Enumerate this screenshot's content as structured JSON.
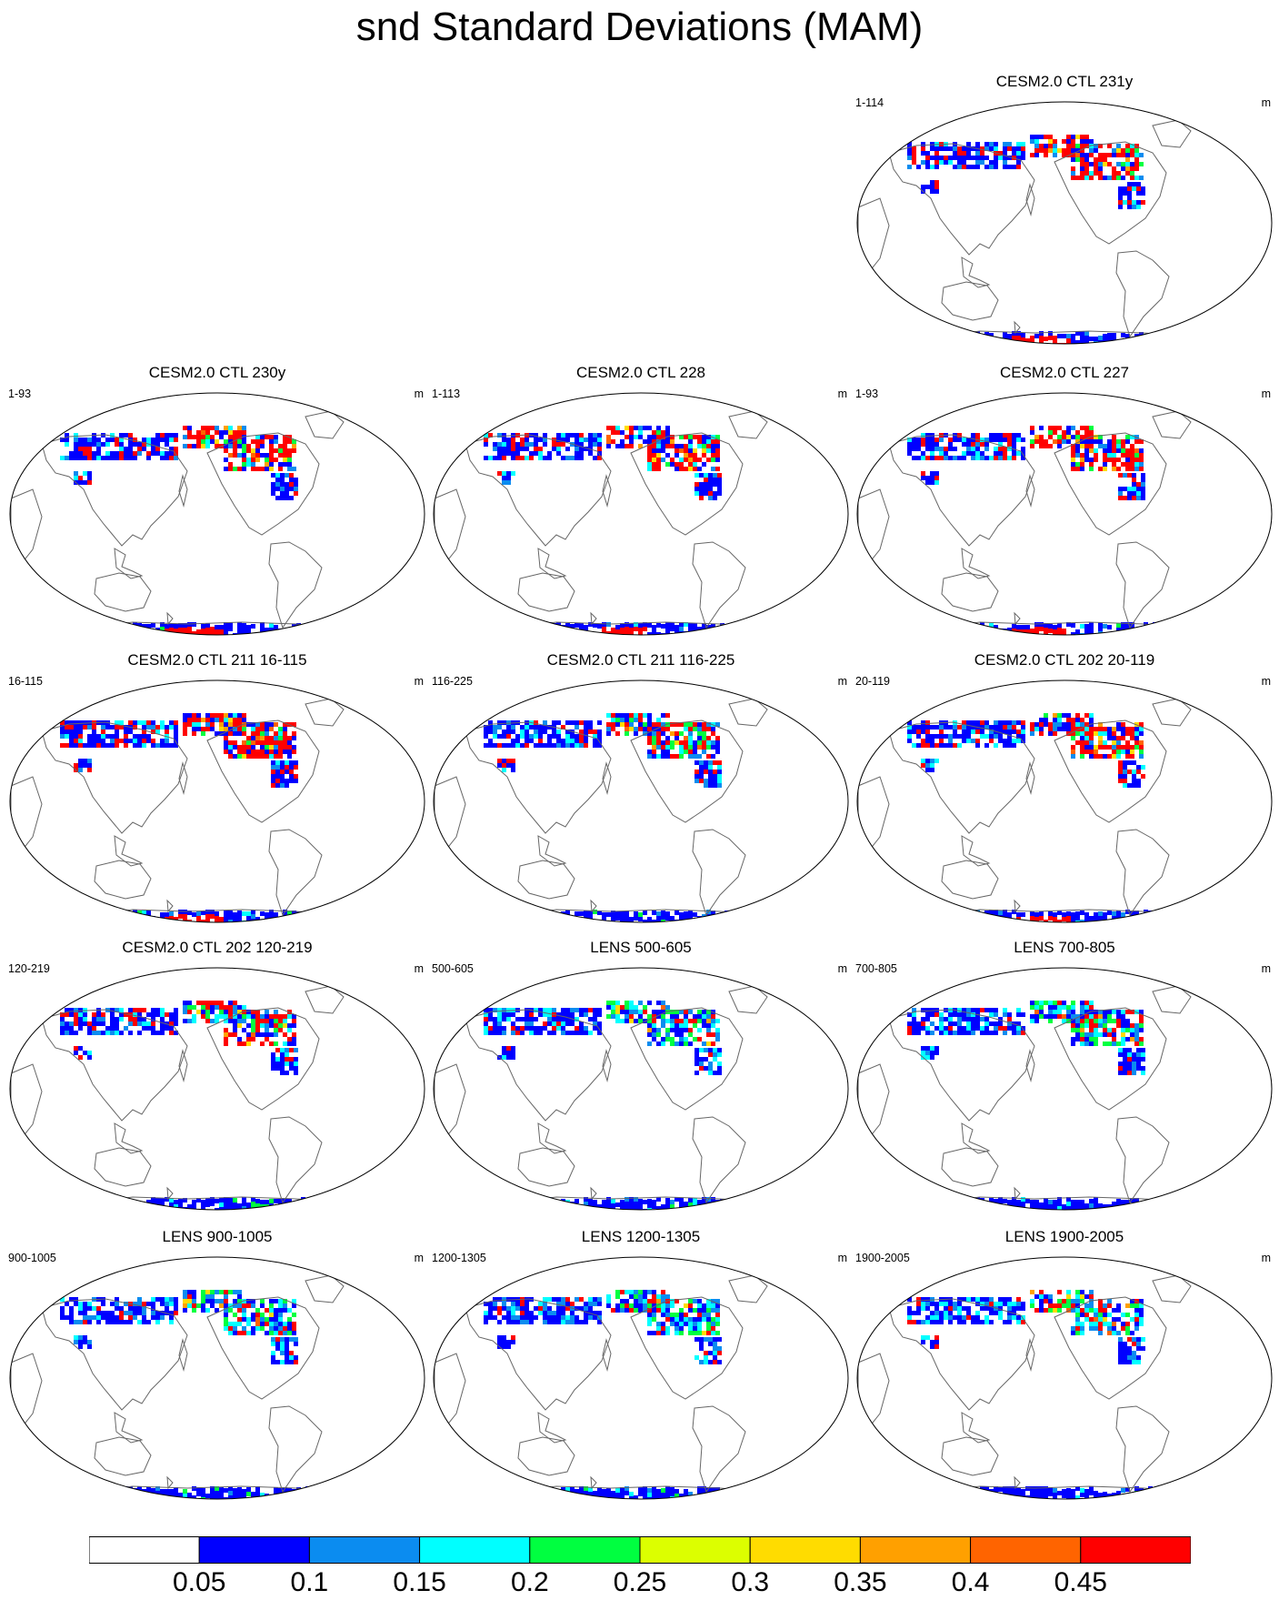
{
  "title": "snd Standard Deviations (MAM)",
  "panels": [
    {
      "title": "CESM2.0 CTL 231y",
      "range": "1-114",
      "units": "m",
      "row": 0,
      "col": 2,
      "intensity": 1.0,
      "antarctic_red": true
    },
    {
      "title": "CESM2.0 CTL 230y",
      "range": "1-93",
      "units": "m",
      "row": 1,
      "col": 0,
      "intensity": 1.0,
      "antarctic_red": true
    },
    {
      "title": "CESM2.0 CTL 228",
      "range": "1-113",
      "units": "m",
      "row": 1,
      "col": 1,
      "intensity": 1.0,
      "antarctic_red": true
    },
    {
      "title": "CESM2.0 CTL 227",
      "range": "1-93",
      "units": "m",
      "row": 1,
      "col": 2,
      "intensity": 1.0,
      "antarctic_red": true
    },
    {
      "title": "CESM2.0 CTL 211 16-115",
      "range": "16-115",
      "units": "m",
      "row": 2,
      "col": 0,
      "intensity": 1.0,
      "antarctic_red": true
    },
    {
      "title": "CESM2.0 CTL 211 116-225",
      "range": "116-225",
      "units": "m",
      "row": 2,
      "col": 1,
      "intensity": 0.7,
      "antarctic_red": false
    },
    {
      "title": "CESM2.0 CTL 202 20-119",
      "range": "20-119",
      "units": "m",
      "row": 2,
      "col": 2,
      "intensity": 1.0,
      "antarctic_red": true
    },
    {
      "title": "CESM2.0 CTL 202 120-219",
      "range": "120-219",
      "units": "m",
      "row": 3,
      "col": 0,
      "intensity": 0.75,
      "antarctic_red": false
    },
    {
      "title": "LENS 500-605",
      "range": "500-605",
      "units": "m",
      "row": 3,
      "col": 1,
      "intensity": 0.4,
      "antarctic_red": false
    },
    {
      "title": "LENS 700-805",
      "range": "700-805",
      "units": "m",
      "row": 3,
      "col": 2,
      "intensity": 0.4,
      "antarctic_red": false
    },
    {
      "title": "LENS 900-1005",
      "range": "900-1005",
      "units": "m",
      "row": 4,
      "col": 0,
      "intensity": 0.35,
      "antarctic_red": false
    },
    {
      "title": "LENS 1200-1305",
      "range": "1200-1305",
      "units": "m",
      "row": 4,
      "col": 1,
      "intensity": 0.35,
      "antarctic_red": false
    },
    {
      "title": "LENS 1900-2005",
      "range": "1900-2005",
      "units": "m",
      "row": 4,
      "col": 2,
      "intensity": 0.35,
      "antarctic_red": false
    }
  ],
  "colorbar": {
    "colors": [
      "#ffffff",
      "#0000ff",
      "#0b8cf0",
      "#00ffff",
      "#00ff40",
      "#dcff00",
      "#ffdc00",
      "#ffa000",
      "#ff6400",
      "#ff0000"
    ],
    "labels": [
      "0.05",
      "0.1",
      "0.15",
      "0.2",
      "0.25",
      "0.3",
      "0.35",
      "0.4",
      "0.45"
    ]
  }
}
